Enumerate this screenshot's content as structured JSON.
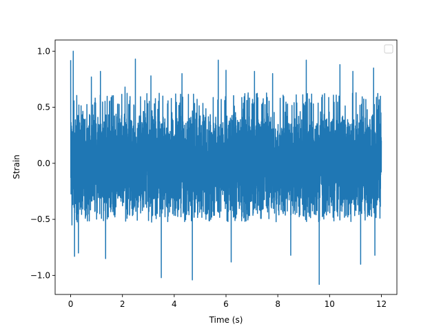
{
  "chart_data": {
    "type": "line",
    "title": "",
    "xlabel": "Time (s)",
    "ylabel": "Strain",
    "xlim": [
      -0.6,
      12.6
    ],
    "ylim": [
      -1.17,
      1.1
    ],
    "x_ticks": [
      0,
      2,
      4,
      6,
      8,
      10,
      12
    ],
    "x_tick_labels": [
      "0",
      "2",
      "4",
      "6",
      "8",
      "10",
      "12"
    ],
    "y_ticks": [
      -1.0,
      -0.5,
      0.0,
      0.5,
      1.0
    ],
    "y_tick_labels": [
      "−1.0",
      "−0.5",
      "0.0",
      "0.5",
      "1.0"
    ],
    "grid": false,
    "legend": {
      "placement": "top-right",
      "entries": []
    },
    "series": [
      {
        "color": "#1f77b4",
        "x_start": 0,
        "x_end": 12,
        "typical_envelope": [
          -0.5,
          0.6
        ],
        "peaks": [
          {
            "x": 0.0,
            "y": 0.92
          },
          {
            "x": 0.1,
            "y": 1.0
          },
          {
            "x": 0.05,
            "y": -0.55
          },
          {
            "x": 0.15,
            "y": -0.83
          },
          {
            "x": 0.3,
            "y": -0.8
          },
          {
            "x": 0.8,
            "y": 0.77
          },
          {
            "x": 1.15,
            "y": 0.82
          },
          {
            "x": 1.35,
            "y": -0.85
          },
          {
            "x": 2.1,
            "y": 0.68
          },
          {
            "x": 2.5,
            "y": 0.93
          },
          {
            "x": 3.1,
            "y": 0.78
          },
          {
            "x": 3.5,
            "y": -1.02
          },
          {
            "x": 4.3,
            "y": 0.8
          },
          {
            "x": 4.7,
            "y": -1.04
          },
          {
            "x": 5.7,
            "y": 0.92
          },
          {
            "x": 6.0,
            "y": 0.83
          },
          {
            "x": 6.2,
            "y": -0.88
          },
          {
            "x": 7.1,
            "y": 0.82
          },
          {
            "x": 7.8,
            "y": 0.8
          },
          {
            "x": 8.5,
            "y": -0.82
          },
          {
            "x": 9.1,
            "y": 0.92
          },
          {
            "x": 9.6,
            "y": -1.08
          },
          {
            "x": 10.4,
            "y": 0.88
          },
          {
            "x": 10.9,
            "y": 0.82
          },
          {
            "x": 11.2,
            "y": -0.9
          },
          {
            "x": 11.7,
            "y": 0.85
          },
          {
            "x": 11.75,
            "y": -0.82
          }
        ]
      }
    ]
  }
}
